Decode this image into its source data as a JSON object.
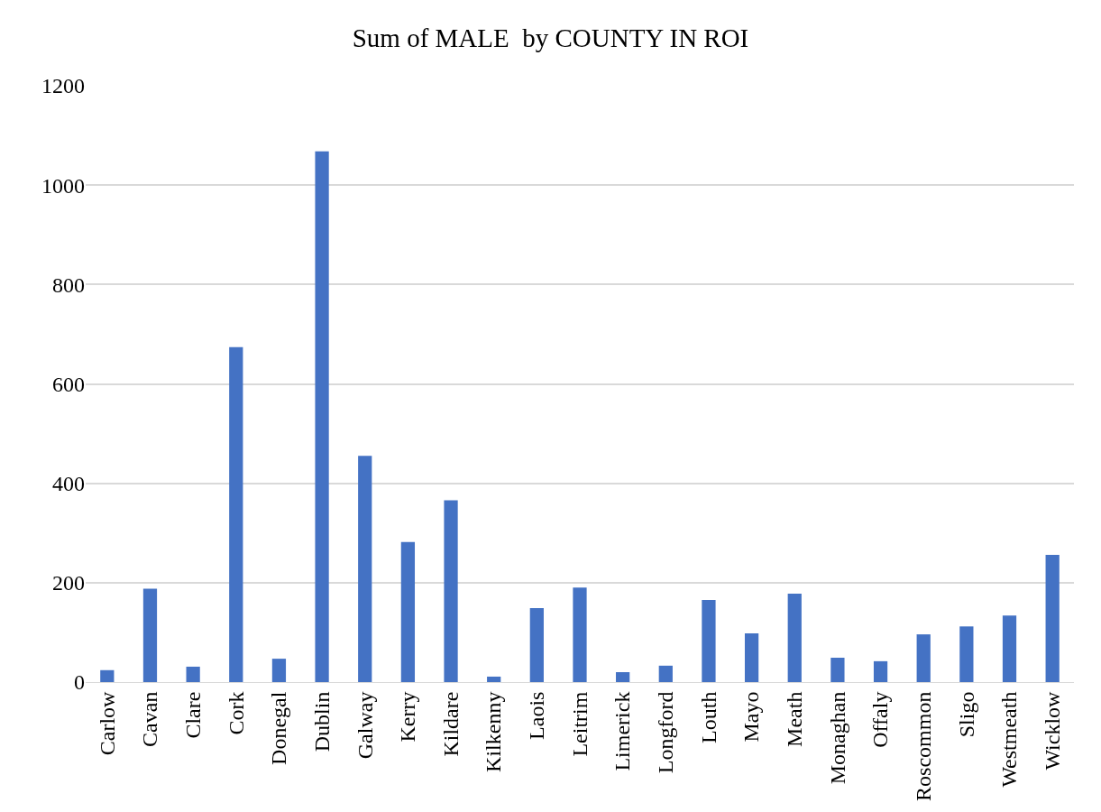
{
  "chart_data": {
    "type": "bar",
    "title": "Sum of MALE  by COUNTY IN ROI",
    "categories": [
      "Carlow",
      "Cavan",
      "Clare",
      "Cork",
      "Donegal",
      "Dublin",
      "Galway",
      "Kerry",
      "Kildare",
      "Kilkenny",
      "Laois",
      "Leitrim",
      "Limerick",
      "Longford",
      "Louth",
      "Mayo",
      "Meath",
      "Monaghan",
      "Offaly",
      "Roscommon",
      "Sligo",
      "Westmeath",
      "Wicklow"
    ],
    "values": [
      24,
      188,
      31,
      674,
      47,
      1068,
      455,
      282,
      366,
      11,
      149,
      190,
      20,
      33,
      165,
      98,
      178,
      49,
      42,
      96,
      112,
      134,
      256
    ],
    "color": "#4472c4",
    "ylim": [
      0,
      1200
    ],
    "yticks": [
      0,
      200,
      400,
      600,
      800,
      1000,
      1200
    ],
    "grid": "y"
  }
}
